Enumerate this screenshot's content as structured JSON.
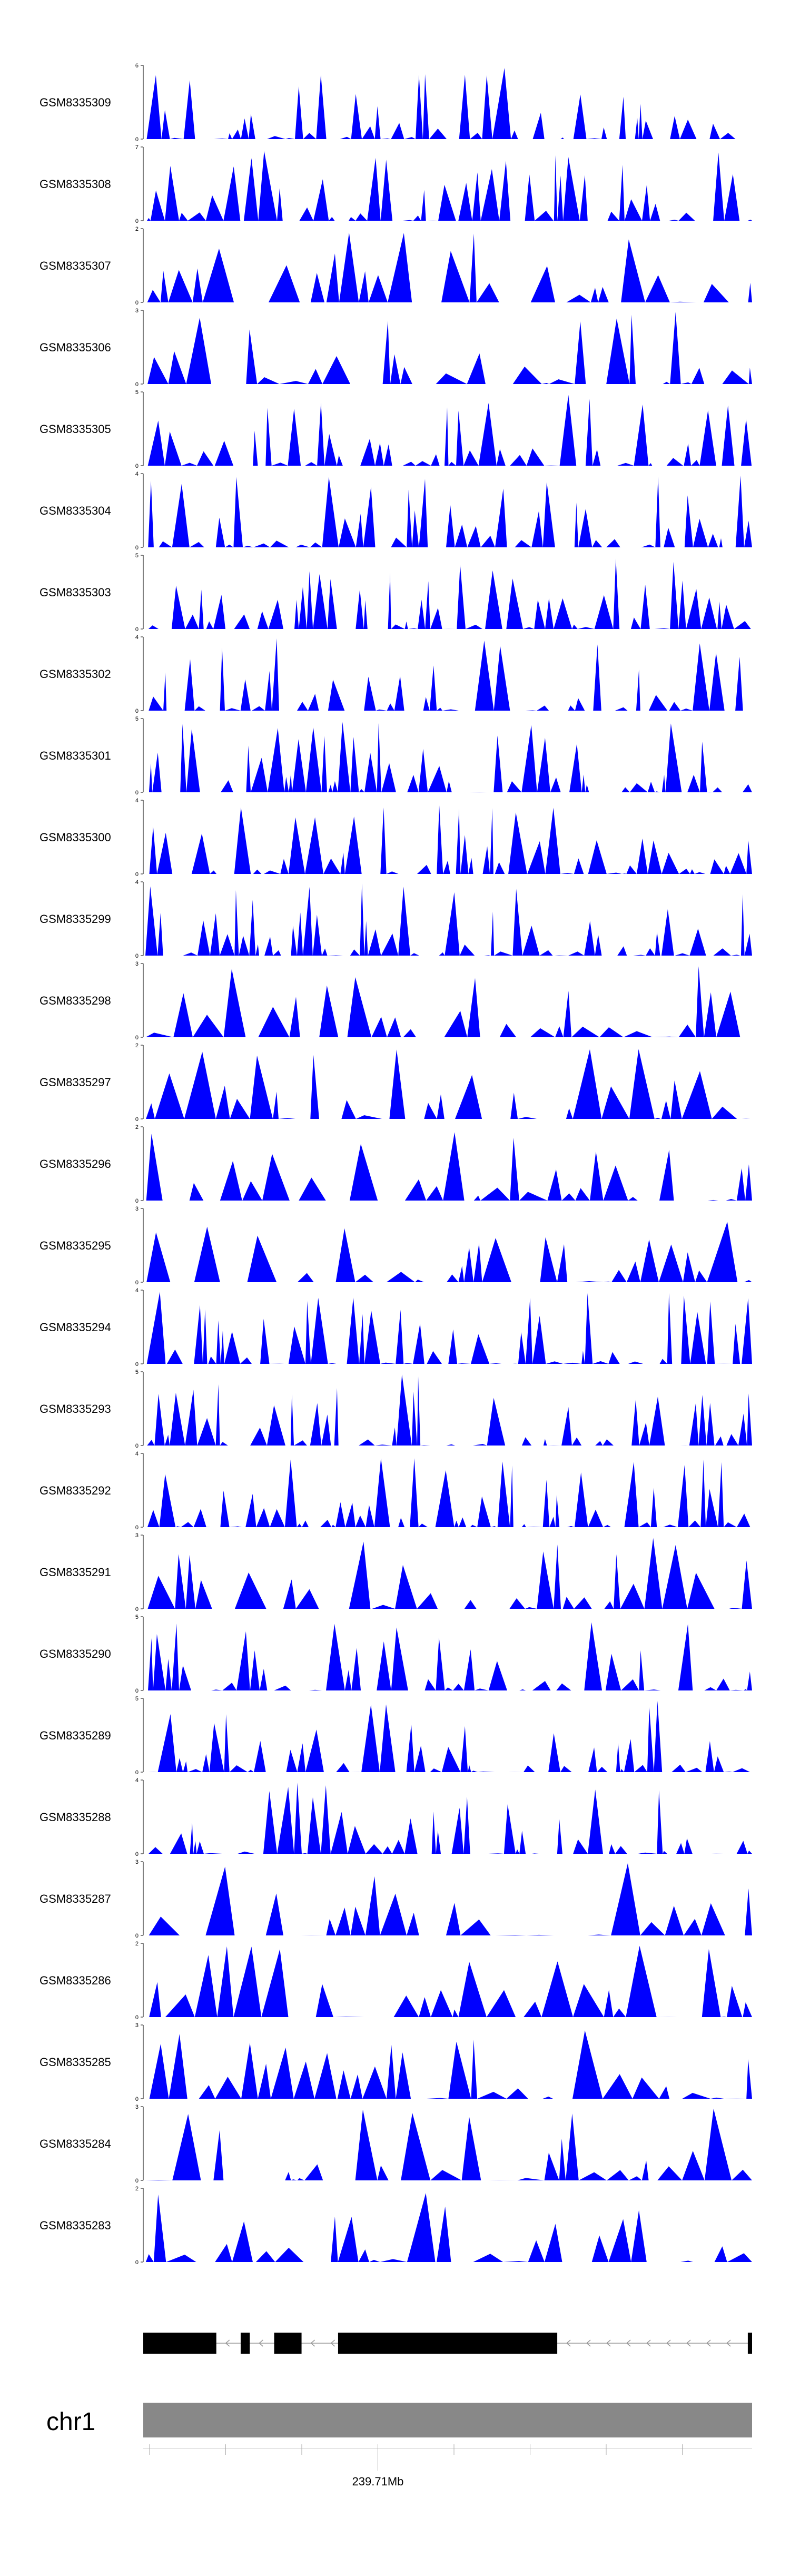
{
  "figure": {
    "fill_color": "#0000ff",
    "axis_color": "#000000"
  },
  "chart_data": {
    "type": "area",
    "title": "",
    "xlabel": "",
    "ylabel": "",
    "tracks": [
      {
        "name": "GSM8335309",
        "ymax": 6
      },
      {
        "name": "GSM8335308",
        "ymax": 7
      },
      {
        "name": "GSM8335307",
        "ymax": 2
      },
      {
        "name": "GSM8335306",
        "ymax": 3
      },
      {
        "name": "GSM8335305",
        "ymax": 5
      },
      {
        "name": "GSM8335304",
        "ymax": 4
      },
      {
        "name": "GSM8335303",
        "ymax": 5
      },
      {
        "name": "GSM8335302",
        "ymax": 4
      },
      {
        "name": "GSM8335301",
        "ymax": 5
      },
      {
        "name": "GSM8335300",
        "ymax": 4
      },
      {
        "name": "GSM8335299",
        "ymax": 4
      },
      {
        "name": "GSM8335298",
        "ymax": 3
      },
      {
        "name": "GSM8335297",
        "ymax": 2
      },
      {
        "name": "GSM8335296",
        "ymax": 2
      },
      {
        "name": "GSM8335295",
        "ymax": 3
      },
      {
        "name": "GSM8335294",
        "ymax": 4
      },
      {
        "name": "GSM8335293",
        "ymax": 5
      },
      {
        "name": "GSM8335292",
        "ymax": 4
      },
      {
        "name": "GSM8335291",
        "ymax": 3
      },
      {
        "name": "GSM8335290",
        "ymax": 5
      },
      {
        "name": "GSM8335289",
        "ymax": 5
      },
      {
        "name": "GSM8335288",
        "ymax": 4
      },
      {
        "name": "GSM8335287",
        "ymax": 3
      },
      {
        "name": "GSM8335286",
        "ymax": 2
      },
      {
        "name": "GSM8335285",
        "ymax": 3
      },
      {
        "name": "GSM8335284",
        "ymax": 3
      },
      {
        "name": "GSM8335283",
        "ymax": 2
      }
    ],
    "gene_model": {
      "strand": "-",
      "exons": [
        [
          0.0,
          0.12
        ],
        [
          0.16,
          0.175
        ],
        [
          0.215,
          0.26
        ],
        [
          0.32,
          0.68
        ],
        [
          0.993,
          1.0
        ]
      ]
    },
    "ideogram": {
      "chromosome": "chr1",
      "ticks": 8,
      "labeled_tick_index": 3,
      "position_label": "239.71Mb"
    }
  }
}
